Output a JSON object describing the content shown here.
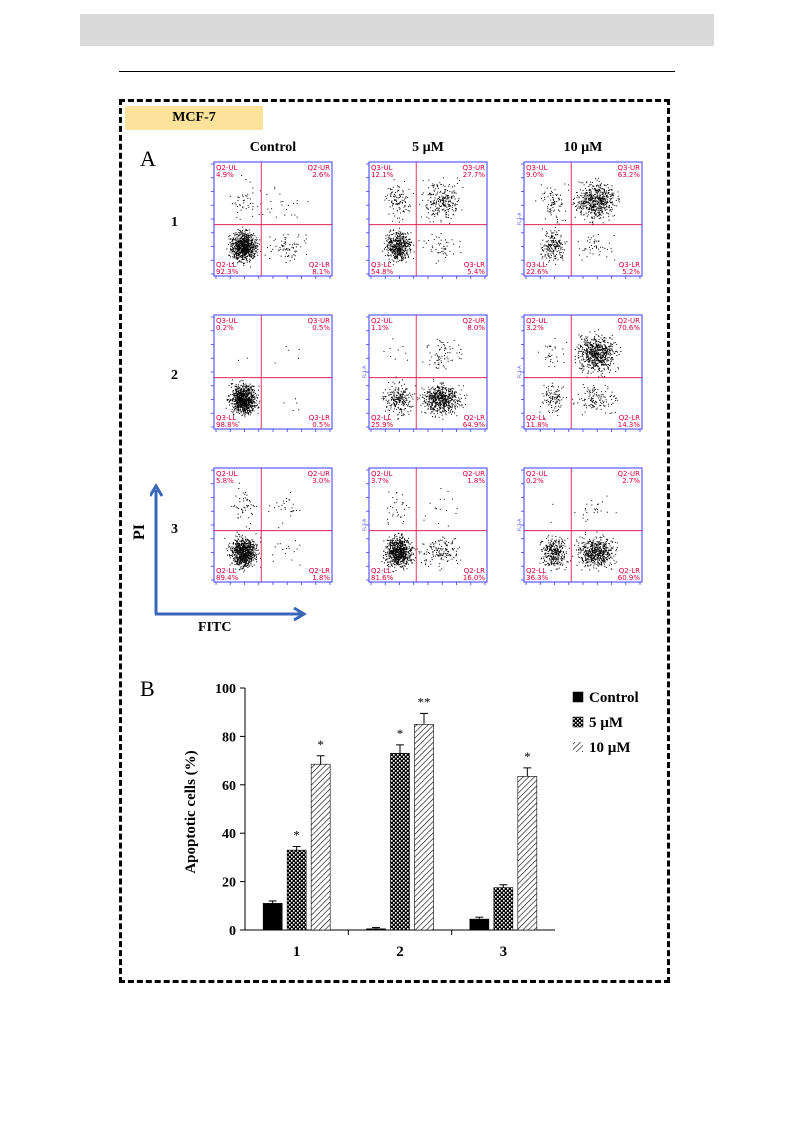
{
  "figure": {
    "tag": "MCF-7",
    "panel_a": "A",
    "panel_b": "B",
    "columns": [
      "Control",
      "5 µM",
      "10 µM"
    ],
    "rows": [
      "1",
      "2",
      "3"
    ],
    "y_axis_label": "PI",
    "x_axis_label": "FITC"
  },
  "flow_plots": [
    {
      "row": "1",
      "col": "Control",
      "ul_name": "Q2-UL",
      "ul": "4.9%",
      "ur_name": "Q2-UR",
      "ur": "2.6%",
      "ll_name": "Q2-LL",
      "ll": "92.3%",
      "lr_name": "Q2-LR",
      "lr": "8.1%",
      "ylab": ""
    },
    {
      "row": "1",
      "col": "5 µM",
      "ul_name": "Q3-UL",
      "ul": "12.1%",
      "ur_name": "Q3-UR",
      "ur": "27.7%",
      "ll_name": "Q3-LL",
      "ll": "54.8%",
      "lr_name": "Q3-LR",
      "lr": "5.4%",
      "ylab": ""
    },
    {
      "row": "1",
      "col": "10 µM",
      "ul_name": "Q3-UL",
      "ul": "9.0%",
      "ur_name": "Q3-UR",
      "ur": "63.2%",
      "ll_name": "Q3-LL",
      "ll": "22.6%",
      "lr_name": "Q3-LR",
      "lr": "5.2%",
      "ylab": "FL1-A"
    },
    {
      "row": "2",
      "col": "Control",
      "ul_name": "Q3-UL",
      "ul": "0.2%",
      "ur_name": "Q3-UR",
      "ur": "0.5%",
      "ll_name": "Q3-LL",
      "ll": "98.8%",
      "lr_name": "Q3-LR",
      "lr": "0.5%",
      "ylab": ""
    },
    {
      "row": "2",
      "col": "5 µM",
      "ul_name": "Q2-UL",
      "ul": "1.1%",
      "ur_name": "Q2-UR",
      "ur": "8.0%",
      "ll_name": "Q2-LL",
      "ll": "25.9%",
      "lr_name": "Q2-LR",
      "lr": "64.9%",
      "ylab": "FL1-A"
    },
    {
      "row": "2",
      "col": "10 µM",
      "ul_name": "Q2-UL",
      "ul": "3.2%",
      "ur_name": "Q2-UR",
      "ur": "70.6%",
      "ll_name": "Q2-LL",
      "ll": "11.8%",
      "lr_name": "Q2-LR",
      "lr": "14.3%",
      "ylab": "FL1-A"
    },
    {
      "row": "3",
      "col": "Control",
      "ul_name": "Q2-UL",
      "ul": "5.8%",
      "ur_name": "Q2-UR",
      "ur": "3.0%",
      "ll_name": "Q2-LL",
      "ll": "89.4%",
      "lr_name": "Q2-LR",
      "lr": "1.8%",
      "ylab": ""
    },
    {
      "row": "3",
      "col": "5 µM",
      "ul_name": "Q2-UL",
      "ul": "3.7%",
      "ur_name": "Q2-UR",
      "ur": "1.8%",
      "ll_name": "Q2-LL",
      "ll": "81.6%",
      "lr_name": "Q2-LR",
      "lr": "16.0%",
      "ylab": "FL3-A"
    },
    {
      "row": "3",
      "col": "10 µM",
      "ul_name": "Q2-UL",
      "ul": "0.2%",
      "ur_name": "Q2-UR",
      "ur": "2.7%",
      "ll_name": "Q2-LL",
      "ll": "36.3%",
      "lr_name": "Q2-LR",
      "lr": "60.9%",
      "ylab": "FL3-A"
    }
  ],
  "chart_data": {
    "type": "bar",
    "categories": [
      "1",
      "2",
      "3"
    ],
    "ylabel": "Apoptotic cells (%)",
    "xlabel": "",
    "ylim": [
      0,
      100
    ],
    "yticks": [
      0,
      20,
      40,
      60,
      80,
      100
    ],
    "legend_position": "top-right",
    "series": [
      {
        "name": "Control",
        "values": [
          11,
          0.5,
          4.5
        ],
        "errors": [
          1,
          0.5,
          0.8
        ],
        "sig": [
          "",
          "",
          ""
        ],
        "pattern": "solid"
      },
      {
        "name": "5 µM",
        "values": [
          33,
          73,
          17.5
        ],
        "errors": [
          1.5,
          3.5,
          1.2
        ],
        "sig": [
          "*",
          "*",
          ""
        ],
        "pattern": "checker"
      },
      {
        "name": "10 µM",
        "values": [
          68.5,
          85,
          63.5
        ],
        "errors": [
          3.5,
          4.5,
          3.5
        ],
        "sig": [
          "*",
          "**",
          "*"
        ],
        "pattern": "hatch"
      }
    ]
  }
}
